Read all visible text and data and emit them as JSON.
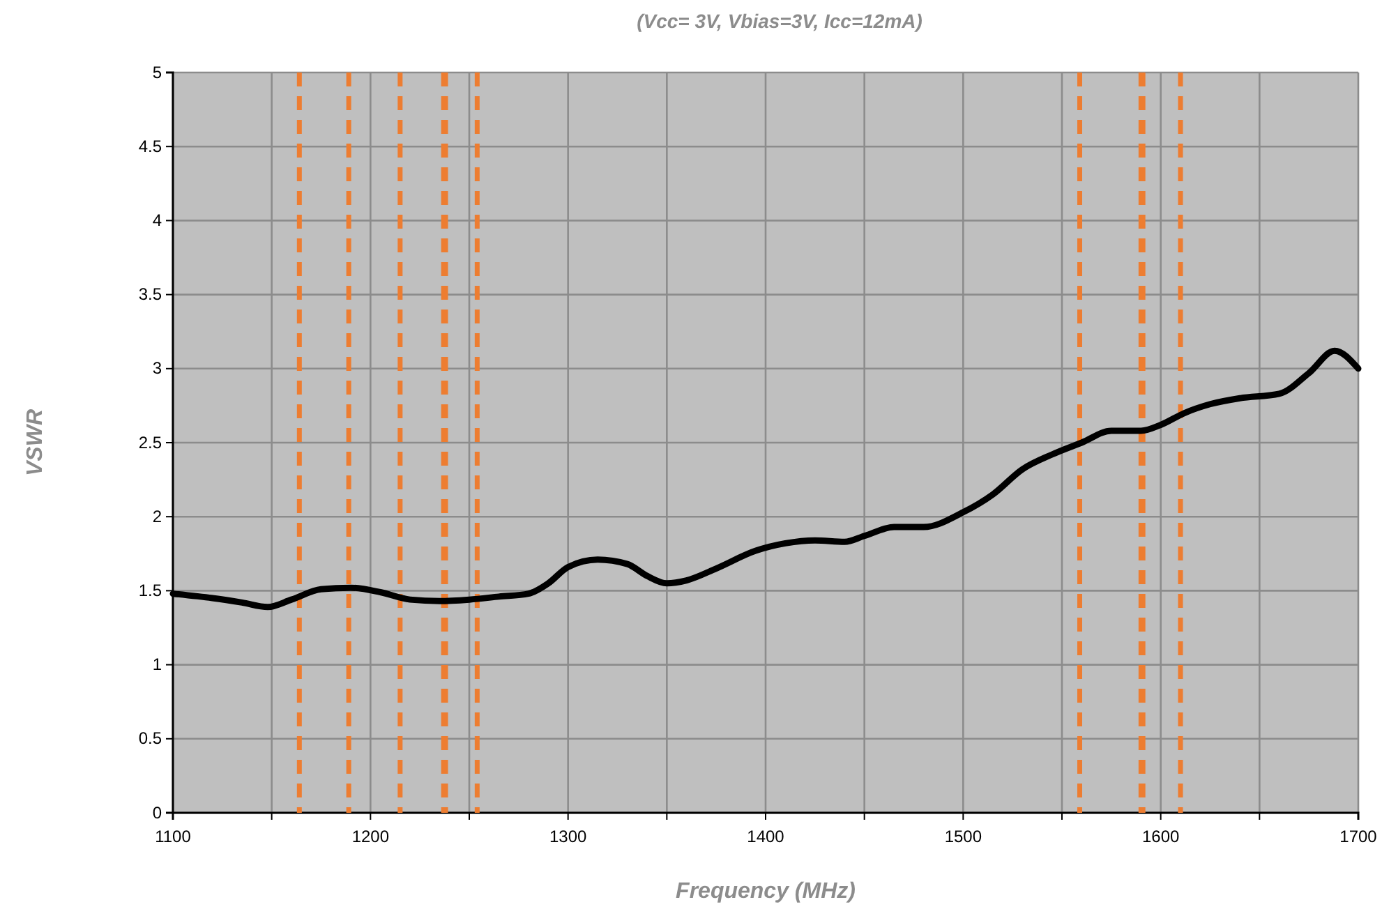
{
  "chart_data": {
    "type": "line",
    "title": "(Vcc= 3V, Vbias=3V, Icc=12mA)",
    "xlabel": "Frequency (MHz)",
    "ylabel": "VSWR",
    "xlim": [
      1100,
      1700
    ],
    "xticks": [
      1100,
      {
        "value": 1150,
        "label": null
      },
      1200,
      {
        "value": 1250,
        "label": null
      },
      1300,
      {
        "value": 1350,
        "label": null
      },
      1400,
      {
        "value": 1450,
        "label": null
      },
      1500,
      {
        "value": 1550,
        "label": null
      },
      1600,
      {
        "value": 1650,
        "label": null
      },
      1700
    ],
    "ylim": [
      0,
      5
    ],
    "yticks": [
      0,
      0.5,
      1,
      1.5,
      2,
      2.5,
      3,
      3.5,
      4,
      4.5,
      5
    ],
    "grid": true,
    "marker": "none",
    "line_style": "solid",
    "series": [
      {
        "color": "#000000",
        "x": [
          1100,
          1120,
          1135,
          1148,
          1160,
          1175,
          1190,
          1205,
          1220,
          1235,
          1250,
          1265,
          1280,
          1290,
          1300,
          1315,
          1330,
          1340,
          1350,
          1360,
          1375,
          1395,
          1410,
          1425,
          1440,
          1450,
          1465,
          1480,
          1500,
          1515,
          1530,
          1545,
          1560,
          1575,
          1590,
          1600,
          1612,
          1625,
          1640,
          1660,
          1675,
          1688,
          1700
        ],
        "values": [
          1.48,
          1.45,
          1.42,
          1.39,
          1.44,
          1.51,
          1.52,
          1.49,
          1.44,
          1.43,
          1.44,
          1.46,
          1.48,
          1.55,
          1.66,
          1.71,
          1.68,
          1.6,
          1.55,
          1.57,
          1.65,
          1.77,
          1.82,
          1.84,
          1.83,
          1.87,
          1.93,
          1.93,
          2.03,
          2.15,
          2.32,
          2.42,
          2.5,
          2.58,
          2.58,
          2.62,
          2.7,
          2.76,
          2.8,
          2.83,
          2.97,
          3.12,
          3.0
        ]
      }
    ],
    "ref_lines": [
      {
        "axis": "x",
        "value": 1164,
        "color": "#ed7d31",
        "line_style": "dashed"
      },
      {
        "axis": "x",
        "value": 1189,
        "color": "#ed7d31",
        "line_style": "dashed"
      },
      {
        "axis": "x",
        "value": 1215,
        "color": "#ed7d31",
        "line_style": "dashed"
      },
      {
        "axis": "x",
        "value": 1237,
        "color": "#ed7d31",
        "line_style": "dashed"
      },
      {
        "axis": "x",
        "value": 1238,
        "color": "#ed7d31",
        "line_style": "dashed"
      },
      {
        "axis": "x",
        "value": 1254,
        "color": "#ed7d31",
        "line_style": "dashed"
      },
      {
        "axis": "x",
        "value": 1559,
        "color": "#ed7d31",
        "line_style": "dashed"
      },
      {
        "axis": "x",
        "value": 1590,
        "color": "#ed7d31",
        "line_style": "dashed"
      },
      {
        "axis": "x",
        "value": 1591,
        "color": "#ed7d31",
        "line_style": "dashed"
      },
      {
        "axis": "x",
        "value": 1610,
        "color": "#ed7d31",
        "line_style": "dashed"
      }
    ]
  }
}
